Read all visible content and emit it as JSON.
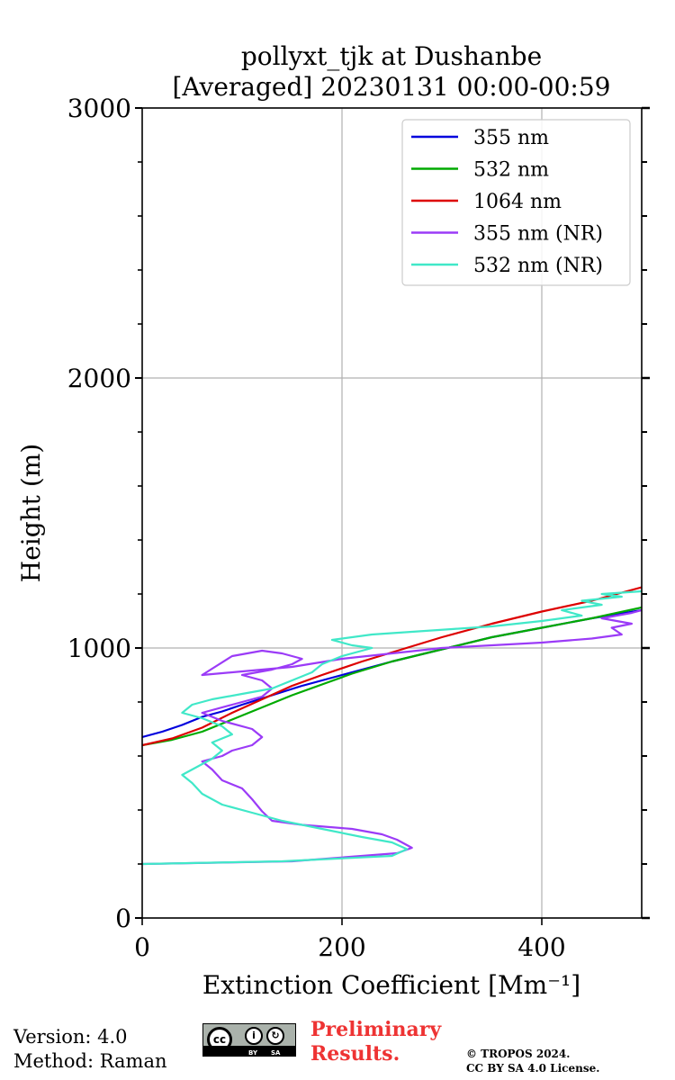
{
  "chart_data": {
    "type": "line",
    "title_line1": "pollyxt_tjk at Dushanbe",
    "title_line2": "[Averaged] 20230131 00:00-00:59",
    "xlabel": "Extinction Coefficient [Mm⁻¹]",
    "ylabel": "Height (m)",
    "xlim": [
      0,
      500
    ],
    "ylim": [
      0,
      3000
    ],
    "xticks": [
      0,
      200,
      400
    ],
    "yticks": [
      0,
      1000,
      2000,
      3000
    ],
    "y_minor_step": 200,
    "grid": true,
    "legend_position": "top-right",
    "series": [
      {
        "name": "355 nm",
        "color": "#0000dd",
        "x": [
          0,
          20,
          40,
          60,
          80,
          100,
          130,
          160,
          200,
          250,
          300,
          350,
          400,
          450,
          500
        ],
        "y": [
          670,
          690,
          715,
          745,
          765,
          790,
          825,
          860,
          900,
          950,
          995,
          1040,
          1075,
          1110,
          1140
        ]
      },
      {
        "name": "532 nm",
        "color": "#00aa00",
        "x": [
          0,
          30,
          60,
          90,
          120,
          150,
          180,
          210,
          250,
          300,
          350,
          400,
          450,
          500
        ],
        "y": [
          640,
          660,
          690,
          735,
          780,
          825,
          865,
          905,
          950,
          995,
          1040,
          1075,
          1110,
          1150
        ]
      },
      {
        "name": "1064 nm",
        "color": "#dd0000",
        "x": [
          0,
          30,
          60,
          90,
          120,
          150,
          180,
          220,
          260,
          300,
          350,
          400,
          450,
          500
        ],
        "y": [
          640,
          665,
          705,
          760,
          810,
          860,
          900,
          950,
          995,
          1040,
          1090,
          1135,
          1175,
          1225
        ]
      },
      {
        "name": "355 nm (NR)",
        "color": "#9b3bf7",
        "x": [
          0,
          150,
          255,
          270,
          255,
          240,
          210,
          160,
          130,
          120,
          110,
          100,
          80,
          70,
          60,
          80,
          90,
          110,
          120,
          110,
          80,
          60,
          90,
          120,
          130,
          120,
          100,
          130,
          150,
          160,
          140,
          120,
          90,
          60,
          150,
          200,
          250,
          300,
          350,
          400,
          450,
          480,
          470,
          490,
          460,
          490,
          500
        ],
        "y": [
          200,
          210,
          240,
          260,
          290,
          310,
          330,
          345,
          360,
          395,
          440,
          480,
          510,
          550,
          580,
          600,
          620,
          640,
          670,
          700,
          730,
          760,
          790,
          820,
          850,
          880,
          900,
          920,
          940,
          960,
          980,
          990,
          970,
          900,
          930,
          960,
          980,
          1000,
          1010,
          1020,
          1035,
          1050,
          1075,
          1090,
          1110,
          1130,
          1140
        ]
      },
      {
        "name": "532 nm (NR)",
        "color": "#40e8c8",
        "x": [
          0,
          140,
          250,
          265,
          250,
          220,
          180,
          140,
          110,
          80,
          60,
          50,
          40,
          55,
          70,
          80,
          70,
          90,
          80,
          60,
          40,
          50,
          70,
          100,
          130,
          150,
          170,
          180,
          200,
          230,
          210,
          190,
          230,
          270,
          310,
          350,
          400,
          440,
          420,
          460,
          440,
          480,
          460,
          500
        ],
        "y": [
          200,
          210,
          230,
          255,
          280,
          300,
          330,
          360,
          390,
          420,
          460,
          500,
          530,
          560,
          590,
          620,
          650,
          680,
          710,
          740,
          760,
          790,
          810,
          830,
          850,
          880,
          910,
          940,
          970,
          1000,
          1010,
          1030,
          1050,
          1060,
          1070,
          1080,
          1100,
          1120,
          1140,
          1160,
          1175,
          1190,
          1200,
          1210
        ]
      }
    ]
  },
  "footer": {
    "version": "Version: 4.0",
    "method": "Method: Raman",
    "preliminary_line1": "Preliminary",
    "preliminary_line2": "Results.",
    "copyright_line1": "© TROPOS 2024.",
    "copyright_line2": "CC BY SA 4.0 License.",
    "license_badge": {
      "cc": "cc",
      "by": "BY",
      "sa": "SA"
    }
  }
}
